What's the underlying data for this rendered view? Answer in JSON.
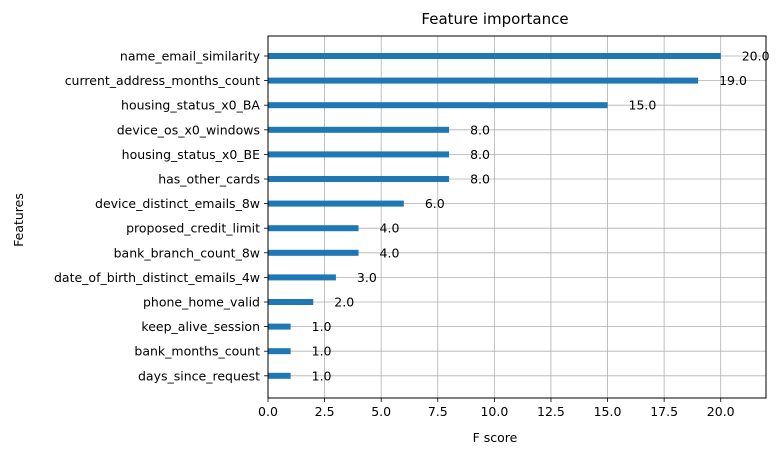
{
  "chart_data": {
    "type": "bar",
    "orientation": "horizontal",
    "title": "Feature importance",
    "xlabel": "F score",
    "ylabel": "Features",
    "xlim": [
      0,
      22
    ],
    "xticks": [
      "0.0",
      "2.5",
      "5.0",
      "7.5",
      "10.0",
      "12.5",
      "15.0",
      "17.5",
      "20.0"
    ],
    "grid": true,
    "bar_color": "#1f77b4",
    "categories": [
      "name_email_similarity",
      "current_address_months_count",
      "housing_status_x0_BA",
      "device_os_x0_windows",
      "housing_status_x0_BE",
      "has_other_cards",
      "device_distinct_emails_8w",
      "proposed_credit_limit",
      "bank_branch_count_8w",
      "date_of_birth_distinct_emails_4w",
      "phone_home_valid",
      "keep_alive_session",
      "bank_months_count",
      "days_since_request"
    ],
    "values": [
      20,
      19,
      15,
      8,
      8,
      8,
      6,
      4,
      4,
      3,
      2,
      1,
      1,
      1
    ],
    "value_labels": [
      "20.0",
      "19.0",
      "15.0",
      "8.0",
      "8.0",
      "8.0",
      "6.0",
      "4.0",
      "4.0",
      "3.0",
      "2.0",
      "1.0",
      "1.0",
      "1.0"
    ]
  }
}
